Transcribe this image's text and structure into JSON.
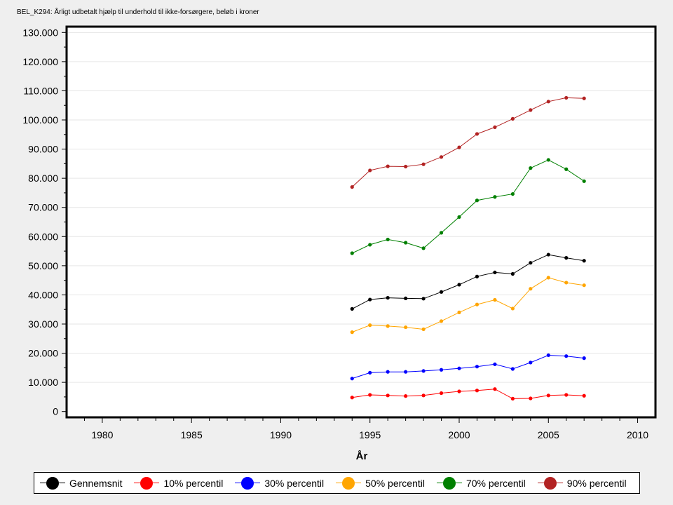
{
  "chart_data": {
    "type": "line",
    "title": "BEL_K294: Årligt udbetalt hjælp til underhold til ikke-forsørgere, beløb i kroner",
    "xlabel": "År",
    "ylabel": "",
    "xlim": [
      1978,
      2011
    ],
    "ylim": [
      -2000,
      132000
    ],
    "x_ticks": [
      1980,
      1985,
      1990,
      1995,
      2000,
      2005,
      2010
    ],
    "x_tick_labels": [
      "1980",
      "1985",
      "1990",
      "1995",
      "2000",
      "2005",
      "2010"
    ],
    "y_ticks": [
      0,
      10000,
      20000,
      30000,
      40000,
      50000,
      60000,
      70000,
      80000,
      90000,
      100000,
      110000,
      120000,
      130000
    ],
    "y_tick_labels": [
      "0",
      "10.000",
      "20.000",
      "30.000",
      "40.000",
      "50.000",
      "60.000",
      "70.000",
      "80.000",
      "90.000",
      "100.000",
      "110.000",
      "120.000",
      "130.000"
    ],
    "grid": "horizontal",
    "legend_position": "bottom",
    "x": [
      1994,
      1995,
      1996,
      1997,
      1998,
      1999,
      2000,
      2001,
      2002,
      2003,
      2004,
      2005,
      2006,
      2007
    ],
    "series": [
      {
        "name": "Gennemsnit",
        "color": "#000000",
        "values": [
          35200,
          38400,
          39000,
          38800,
          38700,
          41000,
          43500,
          46300,
          47700,
          47200,
          51000,
          53800,
          52700,
          51700
        ]
      },
      {
        "name": "10% percentil",
        "color": "#ff0000",
        "values": [
          4800,
          5700,
          5500,
          5300,
          5500,
          6300,
          6900,
          7200,
          7700,
          4400,
          4500,
          5500,
          5700,
          5400
        ]
      },
      {
        "name": "30% percentil",
        "color": "#0000ff",
        "values": [
          11300,
          13300,
          13600,
          13600,
          13900,
          14300,
          14800,
          15400,
          16200,
          14600,
          16800,
          19300,
          19000,
          18300
        ]
      },
      {
        "name": "50% percentil",
        "color": "#ffa500",
        "values": [
          27200,
          29600,
          29300,
          28900,
          28200,
          31000,
          34000,
          36700,
          38300,
          35300,
          42100,
          45900,
          44200,
          43300
        ]
      },
      {
        "name": "70% percentil",
        "color": "#008000",
        "values": [
          54300,
          57200,
          59000,
          57900,
          56000,
          61300,
          66700,
          72400,
          73600,
          74600,
          83500,
          86300,
          83100,
          79000
        ]
      },
      {
        "name": "90% percentil",
        "color": "#b22222",
        "values": [
          77000,
          82700,
          84100,
          84000,
          84800,
          87300,
          90600,
          95200,
          97500,
          100400,
          103400,
          106300,
          107600,
          107400
        ]
      }
    ]
  }
}
